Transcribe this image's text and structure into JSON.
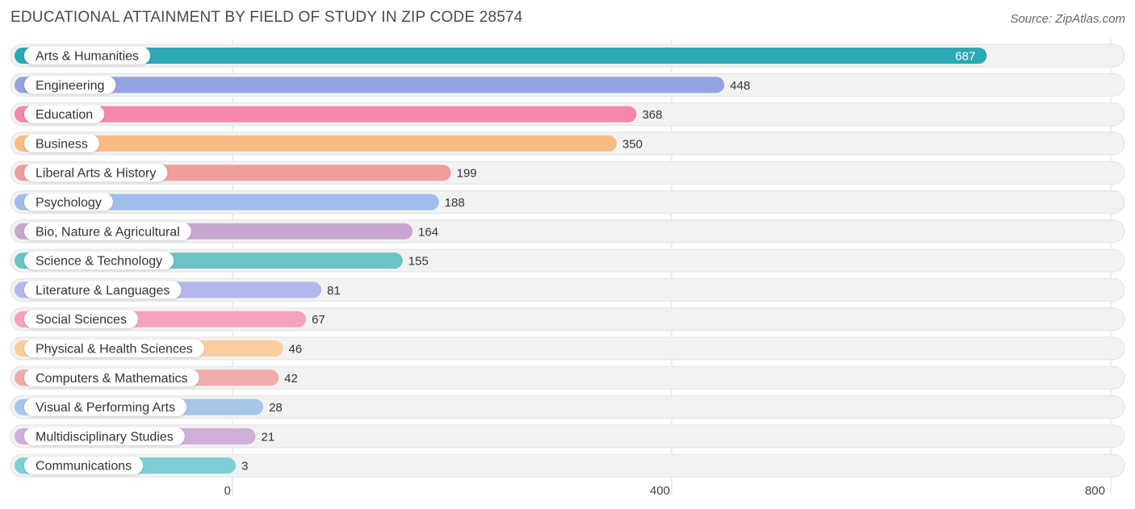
{
  "header": {
    "title": "EDUCATIONAL ATTAINMENT BY FIELD OF STUDY IN ZIP CODE 28574",
    "source": "Source: ZipAtlas.com"
  },
  "chart_data": {
    "type": "bar",
    "orientation": "horizontal",
    "title": "EDUCATIONAL ATTAINMENT BY FIELD OF STUDY IN ZIP CODE 28574",
    "categories": [
      "Arts & Humanities",
      "Engineering",
      "Education",
      "Business",
      "Liberal Arts & History",
      "Psychology",
      "Bio, Nature & Agricultural",
      "Science & Technology",
      "Literature & Languages",
      "Social Sciences",
      "Physical & Health Sciences",
      "Computers & Mathematics",
      "Visual & Performing Arts",
      "Multidisciplinary Studies",
      "Communications"
    ],
    "values": [
      687,
      448,
      368,
      350,
      199,
      188,
      164,
      155,
      81,
      67,
      46,
      42,
      28,
      21,
      3
    ],
    "colors": [
      "#2ba8b5",
      "#93a3e0",
      "#f487aa",
      "#f8bc82",
      "#ee9e9c",
      "#9ebee9",
      "#c7a7d0",
      "#6cc2c9",
      "#b3b8ec",
      "#f6a2bd",
      "#fbcc9e",
      "#f1acaa",
      "#a8c6ec",
      "#cfb0d8",
      "#7ccfd5"
    ],
    "xlim": [
      0,
      800
    ],
    "xticks": [
      "0",
      "400",
      "800"
    ],
    "grid": true
  }
}
